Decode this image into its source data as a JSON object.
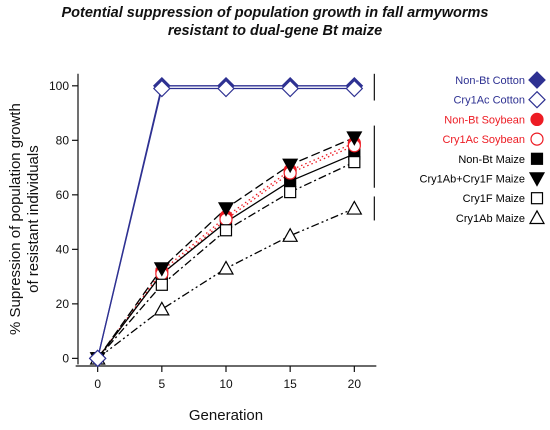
{
  "chart_data": {
    "type": "line",
    "title_line1": "Potential suppression of population growth in fall armyworms",
    "title_line2": "resistant to dual-gene Bt maize",
    "xlabel": "Generation",
    "ylabel_line1": "% Supression of population growth",
    "ylabel_line2": "of resistant individuals",
    "xlim": [
      -2,
      22
    ],
    "ylim": [
      -5,
      108
    ],
    "x_ticks": [
      0,
      5,
      10,
      15,
      20
    ],
    "y_ticks": [
      0,
      20,
      40,
      60,
      80,
      100
    ],
    "x": [
      0,
      5,
      10,
      15,
      20
    ],
    "series": [
      {
        "name": "Non-Bt Cotton",
        "values": [
          0,
          100,
          100,
          100,
          100
        ],
        "color": "#2e3192",
        "label_color": "#2e3192",
        "marker": "diamond-filled",
        "dash": "solid"
      },
      {
        "name": "Cry1Ac Cotton",
        "values": [
          0,
          99,
          99,
          99,
          99
        ],
        "color": "#2e3192",
        "label_color": "#2e3192",
        "marker": "diamond-open",
        "dash": "solid"
      },
      {
        "name": "Non-Bt Soybean",
        "values": [
          0,
          32,
          52,
          69,
          79
        ],
        "color": "#ed1c24",
        "label_color": "#ed1c24",
        "marker": "circle-filled",
        "dash": "dot"
      },
      {
        "name": "Cry1Ac Soybean",
        "values": [
          0,
          31,
          51,
          68,
          78
        ],
        "color": "#ed1c24",
        "label_color": "#ed1c24",
        "marker": "circle-open",
        "dash": "dot"
      },
      {
        "name": "Non-Bt Maize",
        "values": [
          0,
          31,
          50,
          65,
          75
        ],
        "color": "#000000",
        "label_color": "#000000",
        "marker": "square-filled",
        "dash": "solid"
      },
      {
        "name": "Cry1Ab+Cry1F Maize",
        "values": [
          0,
          33,
          55,
          71,
          81
        ],
        "color": "#000000",
        "label_color": "#000000",
        "marker": "triangle-down-filled",
        "dash": "longdash"
      },
      {
        "name": "Cry1F Maize",
        "values": [
          0,
          27,
          47,
          61,
          72
        ],
        "color": "#000000",
        "label_color": "#000000",
        "marker": "square-open",
        "dash": "dashdot"
      },
      {
        "name": "Cry1Ab Maize",
        "values": [
          0,
          18,
          33,
          45,
          55
        ],
        "color": "#000000",
        "label_color": "#000000",
        "marker": "triangle-up-open",
        "dash": "dashdotdot"
      }
    ],
    "bracket_groups": [
      [
        99,
        100
      ],
      [
        67,
        81
      ],
      [
        55,
        55
      ]
    ],
    "grid": false,
    "legend_position": "right"
  }
}
